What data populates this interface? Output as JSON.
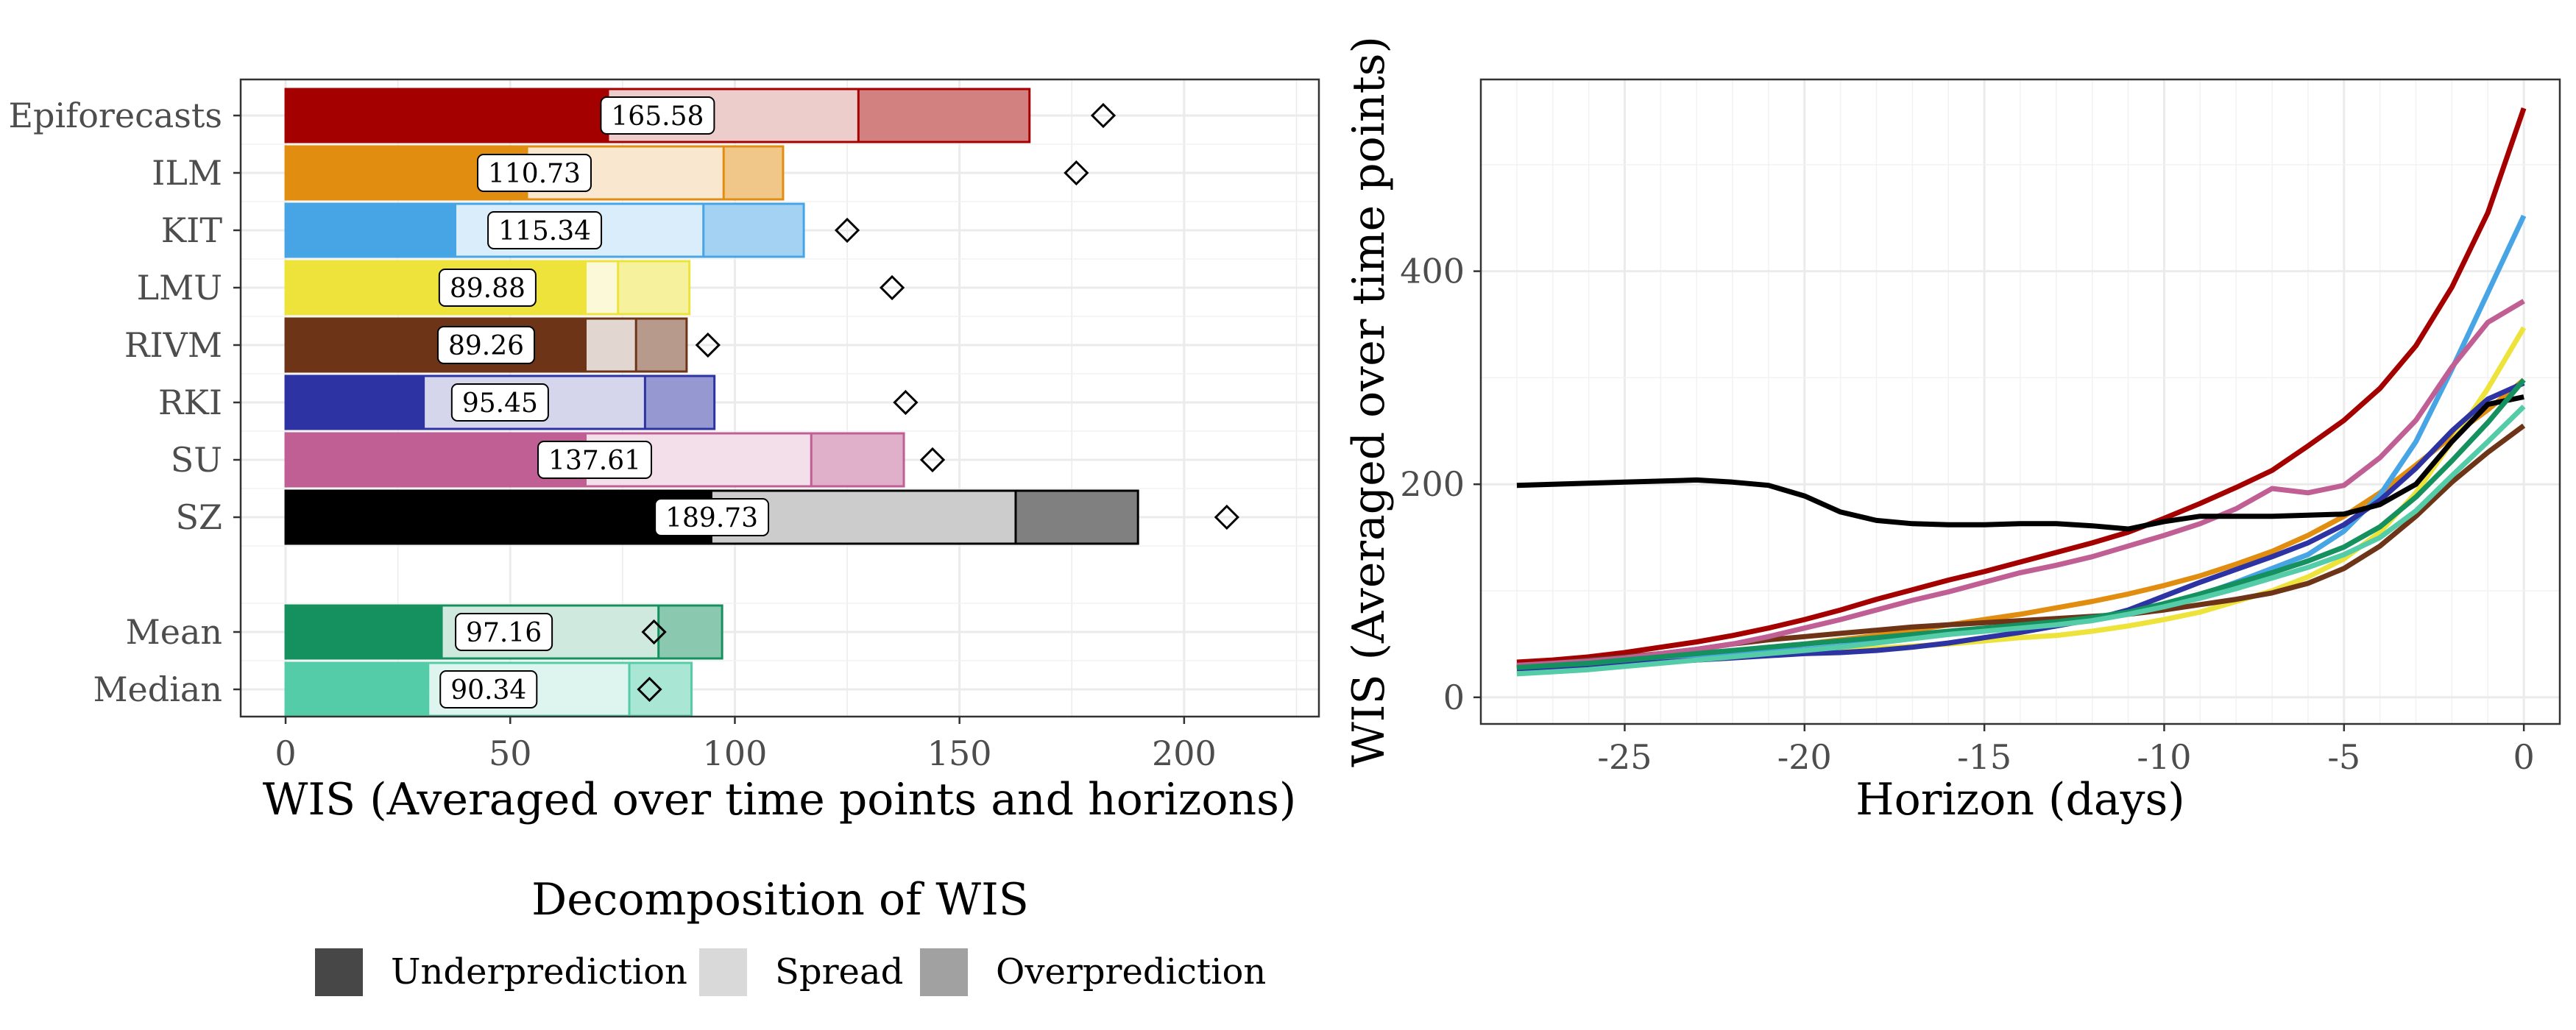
{
  "legend": {
    "title": "Decomposition of WIS",
    "items": [
      {
        "key": "underprediction",
        "label": "Underprediction",
        "color": "#474747"
      },
      {
        "key": "spread",
        "label": "Spread",
        "color": "#d9d9d9"
      },
      {
        "key": "overprediction",
        "label": "Overprediction",
        "color": "#a1a1a1"
      }
    ]
  },
  "chart_data": [
    {
      "type": "bar",
      "orientation": "horizontal",
      "stacked": true,
      "xlabel": "WIS (Averaged over time points and horizons)",
      "xlim": [
        -10,
        230
      ],
      "xticks": [
        0,
        50,
        100,
        150,
        200
      ],
      "grid": true,
      "categories": [
        "Epiforecasts",
        "ILM",
        "KIT",
        "LMU",
        "RIVM",
        "RKI",
        "SU",
        "SZ",
        "Mean",
        "Median"
      ],
      "colors": [
        "#a50000",
        "#e18e10",
        "#48a5e5",
        "#ede33a",
        "#6e3418",
        "#2d33a2",
        "#c05f93",
        "#000000",
        "#14915e",
        "#55cca8"
      ],
      "series": [
        {
          "name": "Underprediction",
          "values": [
            72,
            54,
            38,
            67,
            67,
            31,
            67,
            95,
            35,
            32
          ]
        },
        {
          "name": "Spread",
          "values": [
            55.5,
            43.5,
            55,
            7,
            11,
            49,
            50,
            67.5,
            48,
            44.5
          ]
        },
        {
          "name": "Overprediction",
          "values": [
            38.08,
            13.23,
            22.34,
            15.88,
            11.26,
            15.45,
            20.61,
            27.23,
            14.16,
            13.84
          ]
        }
      ],
      "totals": [
        165.58,
        110.73,
        115.34,
        89.88,
        89.26,
        95.45,
        137.61,
        189.73,
        97.16,
        90.34
      ],
      "data_labels": [
        "165.58",
        "110.73",
        "115.34",
        "89.88",
        "89.26",
        "95.45",
        "137.61",
        "189.73",
        "97.16",
        "90.34"
      ],
      "diamond_values": [
        182,
        176,
        125,
        135,
        94,
        138,
        144,
        209.5,
        82,
        81
      ]
    },
    {
      "type": "line",
      "xlabel": "Horizon (days)",
      "ylabel": "WIS (Averaged over time points)",
      "xlim": [
        -29,
        1
      ],
      "ylim": [
        -25,
        580
      ],
      "xticks": [
        -25,
        -20,
        -15,
        -10,
        -5,
        0
      ],
      "yticks": [
        0,
        200,
        400
      ],
      "grid": true,
      "x": [
        -28,
        -27,
        -26,
        -25,
        -24,
        -23,
        -22,
        -21,
        -20,
        -19,
        -18,
        -17,
        -16,
        -15,
        -14,
        -13,
        -12,
        -11,
        -10,
        -9,
        -8,
        -7,
        -6,
        -5,
        -4,
        -3,
        -2,
        -1,
        0
      ],
      "series": [
        {
          "name": "Epiforecasts",
          "color": "#a50000",
          "values": [
            33,
            35,
            38,
            42,
            47,
            52,
            58,
            65,
            73,
            82,
            92,
            101,
            110,
            118,
            127,
            136,
            145,
            155,
            168,
            182,
            197,
            213,
            236,
            260,
            290,
            330,
            385,
            455,
            553
          ]
        },
        {
          "name": "ILM",
          "color": "#e18e10",
          "values": [
            28,
            30,
            32,
            34,
            37,
            40,
            43,
            47,
            50,
            54,
            58,
            63,
            68,
            73,
            78,
            84,
            90,
            97,
            105,
            114,
            125,
            137,
            152,
            170,
            192,
            218,
            245,
            270,
            298
          ]
        },
        {
          "name": "KIT",
          "color": "#48a5e5",
          "values": [
            27,
            29,
            31,
            33,
            35,
            37,
            40,
            43,
            45,
            48,
            52,
            56,
            60,
            64,
            68,
            71,
            74,
            78,
            86,
            96,
            108,
            121,
            134,
            156,
            190,
            240,
            308,
            380,
            452
          ]
        },
        {
          "name": "LMU",
          "color": "#ede33a",
          "values": [
            25,
            27,
            29,
            31,
            33,
            35,
            37,
            40,
            42,
            44,
            46,
            48,
            50,
            53,
            56,
            58,
            62,
            67,
            73,
            80,
            90,
            100,
            113,
            130,
            155,
            192,
            240,
            290,
            347
          ]
        },
        {
          "name": "RIVM",
          "color": "#6e3418",
          "values": [
            30,
            32,
            35,
            38,
            41,
            45,
            50,
            54,
            57,
            60,
            63,
            66,
            68,
            70,
            72,
            74,
            76,
            78,
            82,
            87,
            92,
            98,
            107,
            121,
            142,
            170,
            202,
            230,
            255
          ]
        },
        {
          "name": "RKI",
          "color": "#2d33a2",
          "values": [
            27,
            28,
            29,
            31,
            33,
            35,
            37,
            39,
            41,
            42,
            44,
            47,
            51,
            56,
            61,
            67,
            73,
            82,
            95,
            108,
            120,
            132,
            145,
            162,
            185,
            215,
            250,
            280,
            295
          ]
        },
        {
          "name": "SU",
          "color": "#c05f93",
          "values": [
            30,
            32,
            34,
            37,
            41,
            45,
            50,
            57,
            65,
            73,
            82,
            91,
            99,
            108,
            117,
            124,
            132,
            142,
            152,
            163,
            177,
            196,
            192,
            199,
            225,
            260,
            310,
            352,
            372
          ]
        },
        {
          "name": "SZ",
          "color": "#000000",
          "values": [
            199,
            200,
            201,
            202,
            203,
            204,
            202,
            199,
            189,
            174,
            166,
            163,
            162,
            162,
            163,
            163,
            161,
            158,
            165,
            170,
            170,
            170,
            171,
            172,
            181,
            200,
            240,
            275,
            282
          ]
        },
        {
          "name": "Mean",
          "color": "#14915e",
          "values": [
            28,
            30,
            32,
            35,
            38,
            41,
            44,
            47,
            50,
            53,
            56,
            59,
            62,
            65,
            68,
            71,
            75,
            80,
            88,
            97,
            107,
            117,
            128,
            141,
            160,
            188,
            222,
            258,
            298
          ]
        },
        {
          "name": "Median",
          "color": "#55cca8",
          "values": [
            22,
            24,
            26,
            29,
            32,
            35,
            38,
            41,
            44,
            47,
            51,
            55,
            59,
            62,
            65,
            68,
            72,
            78,
            85,
            93,
            102,
            112,
            122,
            134,
            150,
            175,
            208,
            240,
            273
          ]
        }
      ]
    }
  ]
}
